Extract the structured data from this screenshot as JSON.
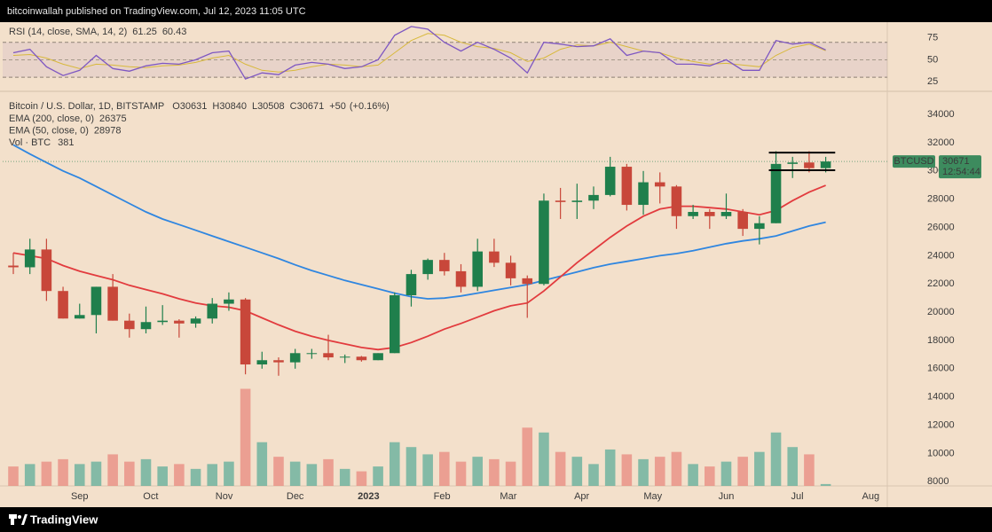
{
  "header": {
    "text": "bitcoinwallah published on TradingView.com, Jul 12, 2023 11:05 UTC"
  },
  "footer": {
    "logo_text": "TradingView"
  },
  "chart_data": [
    {
      "type": "line",
      "title": "RSI (14, close, SMA, 14, 2)",
      "x": [
        3,
        10,
        17,
        24,
        31,
        38,
        45,
        52,
        59,
        66,
        73,
        80,
        87,
        94,
        101,
        108,
        115,
        122,
        129,
        136,
        143,
        150,
        157,
        164,
        171,
        178,
        185,
        192,
        199,
        206,
        213,
        220,
        227,
        234,
        241,
        248,
        255,
        262,
        269,
        276,
        283,
        290,
        297,
        304,
        311,
        318,
        325,
        332,
        339,
        346
      ],
      "xlim": [
        -1.5,
        372
      ],
      "series": [
        {
          "color": "#7e57c2",
          "values": [
            58,
            62,
            42,
            32,
            38,
            55,
            40,
            37,
            43,
            46,
            45,
            50,
            58,
            60,
            28,
            35,
            33,
            44,
            47,
            45,
            40,
            42,
            50,
            78,
            88,
            85,
            70,
            60,
            70,
            62,
            52,
            35,
            70,
            68,
            65,
            66,
            74,
            55,
            60,
            58,
            45,
            45,
            43,
            50,
            38,
            38,
            72,
            68,
            70,
            61.25
          ]
        },
        {
          "color": "#d8b93c",
          "values": [
            55,
            56,
            52,
            45,
            40,
            45,
            44,
            42,
            41,
            43,
            44,
            47,
            52,
            55,
            45,
            38,
            36,
            38,
            42,
            45,
            44,
            42,
            44,
            58,
            72,
            80,
            78,
            70,
            65,
            63,
            58,
            48,
            52,
            62,
            67,
            66,
            70,
            65,
            60,
            58,
            52,
            48,
            45,
            46,
            44,
            42,
            55,
            64,
            68,
            60.43
          ]
        }
      ],
      "ylim": [
        17,
        92
      ],
      "yticks": [
        25,
        50,
        75
      ],
      "bands": [
        30,
        70
      ],
      "midline": 50,
      "band_color": "#7e57c2"
    },
    {
      "type": "candlestick",
      "title": "Bitcoin / U.S. Dollar, 1D, BITSTAMP",
      "ohlc": [
        {
          "label": "O",
          "value": 30631
        },
        {
          "label": "H",
          "value": 30840
        },
        {
          "label": "L",
          "value": 30508
        },
        {
          "label": "C",
          "value": 30671
        }
      ],
      "change": {
        "value": 50,
        "label": "+50"
      },
      "change_percent": {
        "value": 0.16,
        "label": "(+0.16%)"
      },
      "x": [
        3,
        10,
        17,
        24,
        31,
        38,
        45,
        52,
        59,
        66,
        73,
        80,
        87,
        94,
        101,
        108,
        115,
        122,
        129,
        136,
        143,
        150,
        157,
        164,
        171,
        178,
        185,
        192,
        199,
        206,
        213,
        220,
        227,
        234,
        241,
        248,
        255,
        262,
        269,
        276,
        283,
        290,
        297,
        304,
        311,
        318,
        325,
        332,
        339,
        346
      ],
      "xlim": [
        -1.5,
        372
      ],
      "xticks": [
        {
          "value": 31,
          "label": "Sep"
        },
        {
          "value": 61,
          "label": "Oct"
        },
        {
          "value": 92,
          "label": "Nov"
        },
        {
          "value": 122,
          "label": "Dec"
        },
        {
          "value": 153,
          "label": "2023"
        },
        {
          "value": 184,
          "label": "Feb"
        },
        {
          "value": 212,
          "label": "Mar"
        },
        {
          "value": 243,
          "label": "Apr"
        },
        {
          "value": 273,
          "label": "May"
        },
        {
          "value": 304,
          "label": "Jun"
        },
        {
          "value": 334,
          "label": "Jul"
        },
        {
          "value": 365,
          "label": "Aug"
        }
      ],
      "open": [
        23300,
        23180,
        24440,
        21500,
        19550,
        19800,
        21800,
        19400,
        18800,
        19300,
        19400,
        19200,
        19550,
        20600,
        20900,
        16300,
        16600,
        16450,
        17100,
        17100,
        16800,
        16850,
        16600,
        17100,
        21200,
        22700,
        23700,
        22900,
        21800,
        24300,
        23500,
        22400,
        22000,
        27900,
        27800,
        27900,
        28300,
        30300,
        27600,
        29200,
        28900,
        26800,
        27100,
        26800,
        27100,
        25900,
        26300,
        30500,
        30600,
        30200
      ],
      "high": [
        24200,
        25200,
        25200,
        21800,
        20600,
        21800,
        22700,
        19900,
        20400,
        20500,
        19500,
        19700,
        21000,
        21400,
        21000,
        17200,
        16800,
        17400,
        17400,
        18400,
        17000,
        16900,
        17100,
        21400,
        23000,
        23800,
        24200,
        23400,
        25200,
        25200,
        24000,
        22600,
        28400,
        28800,
        29100,
        28900,
        31000,
        30500,
        30000,
        29900,
        29000,
        27600,
        27300,
        28400,
        27300,
        26800,
        31400,
        31000,
        31400,
        31000
      ],
      "low": [
        22700,
        22700,
        20800,
        19550,
        19550,
        18500,
        19400,
        18200,
        18500,
        19100,
        18200,
        18900,
        19200,
        20100,
        15600,
        16000,
        15500,
        16000,
        16700,
        16600,
        16400,
        16500,
        16600,
        17100,
        20400,
        22300,
        22600,
        21400,
        21500,
        23200,
        21900,
        19600,
        21900,
        26600,
        26600,
        27300,
        28200,
        27200,
        26900,
        27700,
        25900,
        26600,
        25900,
        26600,
        25400,
        24800,
        26300,
        29500,
        29900,
        29900
      ],
      "close": [
        23180,
        24440,
        21500,
        19550,
        19800,
        21800,
        19400,
        18800,
        19300,
        19400,
        19200,
        19550,
        20600,
        20900,
        16300,
        16600,
        16450,
        17100,
        17100,
        16800,
        16850,
        16600,
        17100,
        21200,
        22700,
        23700,
        22900,
        21800,
        24300,
        23500,
        22400,
        22000,
        27900,
        27800,
        27900,
        28300,
        30300,
        27600,
        29200,
        28900,
        26800,
        27100,
        26800,
        27100,
        25900,
        26300,
        30500,
        30600,
        30200,
        30671
      ],
      "up_color": "#1f7f4c",
      "down_color": "#c8473a",
      "series": [
        {
          "name": "EMA (200, close, 0)",
          "color": "#2f86e0",
          "values": [
            31850,
            31200,
            30600,
            30000,
            29500,
            28900,
            28300,
            27700,
            27100,
            26600,
            26200,
            25800,
            25400,
            25000,
            24600,
            24200,
            23800,
            23350,
            22950,
            22600,
            22250,
            21950,
            21650,
            21350,
            21100,
            20950,
            21000,
            21150,
            21350,
            21550,
            21750,
            21950,
            22250,
            22550,
            22850,
            23150,
            23400,
            23600,
            23800,
            24000,
            24150,
            24350,
            24600,
            24850,
            25050,
            25200,
            25400,
            25750,
            26100,
            26375
          ]
        },
        {
          "name": "EMA (50, close, 0)",
          "color": "#e23b3e",
          "values": [
            24200,
            24000,
            23800,
            23300,
            22900,
            22600,
            22300,
            21900,
            21600,
            21300,
            20950,
            20650,
            20450,
            20350,
            20100,
            19600,
            19100,
            18650,
            18300,
            18000,
            17750,
            17500,
            17350,
            17500,
            17850,
            18300,
            18800,
            19200,
            19650,
            20100,
            20450,
            20650,
            21500,
            22500,
            23500,
            24400,
            25300,
            26100,
            26800,
            27300,
            27500,
            27500,
            27400,
            27300,
            27100,
            26900,
            27200,
            27900,
            28500,
            28978
          ]
        }
      ],
      "volume": {
        "name": "Vol · BTC",
        "color": "#26a69a",
        "up_color": "#5fae9a",
        "down_color": "#e88a7f",
        "values": [
          4000,
          4500,
          5000,
          5500,
          4500,
          5000,
          6500,
          5000,
          5500,
          4000,
          4500,
          3500,
          4500,
          5000,
          20000,
          9000,
          6000,
          5000,
          4500,
          5500,
          3500,
          3000,
          4000,
          9000,
          8000,
          6500,
          7000,
          5000,
          6000,
          5500,
          5000,
          12000,
          11000,
          7000,
          6000,
          4500,
          7500,
          6500,
          5500,
          6000,
          7000,
          4500,
          4000,
          5000,
          6000,
          7000,
          11000,
          8000,
          6500,
          381
        ],
        "vlim": [
          0,
          80000
        ]
      },
      "ylim": [
        7700,
        35200
      ],
      "yticks": [
        8000,
        10000,
        12000,
        14000,
        16000,
        18000,
        20000,
        22000,
        24000,
        26000,
        28000,
        30000,
        32000,
        34000
      ],
      "grid": false,
      "channel": {
        "x": [
          322,
          350
        ],
        "levels": [
          31300,
          30050
        ],
        "color": "#000000"
      },
      "price_tag": {
        "symbol": "BTCUSD",
        "countdown": "12:54:44",
        "color": "#3d8b5e"
      }
    }
  ]
}
